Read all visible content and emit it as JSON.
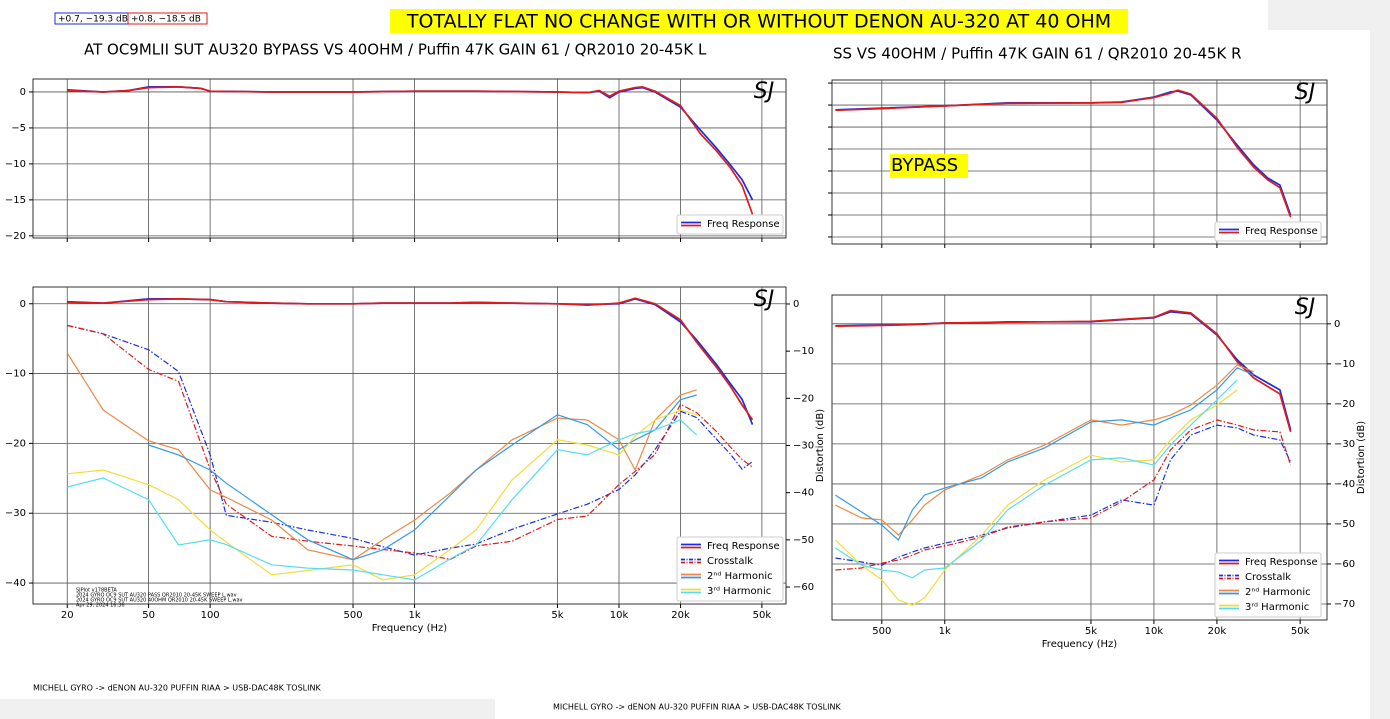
{
  "banner": "TOTALLY FLAT NO CHANGE WITH OR WITHOUT DENON AU-320 AT 40 OHM",
  "readouts": [
    {
      "text": "+0.7, −19.3 dB",
      "color": "#1a2ee0"
    },
    {
      "text": "+0.8, −18.5 dB",
      "color": "#e01a1a"
    }
  ],
  "footers": [
    "MICHELL GYRO -> dENON AU-320 PUFFIN RIAA  > USB-DAC48K  TOSLINK",
    "MICHELL GYRO -> dENON AU-320 PUFFIN RIAA  > USB-DAC48K  TOSLINK"
  ],
  "chart_data": [
    {
      "type": "line",
      "title": "AT OC9MLII SUT AU320 BYPASS VS 40OHM  / Puffin 47K GAIN 61 / QR2010 20-45K L",
      "watermark": "SJ",
      "xscale": "log",
      "xlim": [
        13.6,
        65600
      ],
      "xticks": [
        20,
        50,
        100,
        500,
        1000,
        5000,
        10000,
        20000,
        50000
      ],
      "xtick_labels": false,
      "ylim": [
        -20.3,
        1.8
      ],
      "yticks": [
        0,
        {
          "value": -5,
          "label": "−5"
        },
        {
          "value": -10,
          "label": "−10"
        },
        {
          "value": -15,
          "label": "−15"
        },
        {
          "value": -20,
          "label": "−20"
        }
      ],
      "grid": true,
      "x": [
        20,
        30,
        40,
        50,
        70,
        90,
        100,
        200,
        500,
        1000,
        2000,
        5000,
        7000,
        8000,
        9000,
        10000,
        12000,
        13000,
        15000,
        20000,
        25000,
        30000,
        35000,
        40000,
        45000
      ],
      "series": [
        {
          "name": "Freq Response",
          "traces": [
            {
              "color": "#1a2ee0",
              "values": [
                0.3,
                0,
                0.2,
                0.7,
                0.7,
                0.5,
                0.1,
                0,
                0,
                0.1,
                0.1,
                0,
                -0.1,
                0.1,
                -0.8,
                0,
                0.5,
                0.6,
                0,
                -2.1,
                -5.3,
                -7.8,
                -10.1,
                -12.2,
                -15
              ]
            },
            {
              "color": "#e01a1a",
              "values": [
                0.2,
                0,
                0.2,
                0.6,
                0.7,
                0.5,
                0.1,
                0,
                0,
                0.1,
                0.1,
                0,
                -0.1,
                0.2,
                -0.6,
                0.1,
                0.6,
                0.7,
                0.1,
                -1.9,
                -5.8,
                -8.2,
                -10.5,
                -13,
                -17
              ]
            }
          ]
        }
      ],
      "legend": "lower right"
    },
    {
      "type": "line",
      "xlabel": "Frequency (Hz)",
      "y2label": "Distortion (dB)",
      "watermark": "SJ",
      "notes": [
        "SJPlot v178BETA",
        "2024 GYRO OC9 SUT AU320 PASS QR2010 20-45K SWEEP L.wav",
        "2024 GYRO OC9 SUT AU320 40OHM QR2010 20-45K SWEEP L.wav",
        "Apr 29, 2024 16:36"
      ],
      "xscale": "log",
      "xlim": [
        13.6,
        65600
      ],
      "xticks": [
        20,
        50,
        100,
        500,
        {
          "value": 1000,
          "label": "1k"
        },
        {
          "value": 5000,
          "label": "5k"
        },
        {
          "value": 10000,
          "label": "10k"
        },
        {
          "value": 20000,
          "label": "20k"
        },
        {
          "value": 50000,
          "label": "50k"
        }
      ],
      "ylim": [
        -43,
        2.4
      ],
      "yticks": [
        0,
        {
          "value": -10,
          "label": "−10"
        },
        {
          "value": -20,
          "label": "−20"
        },
        {
          "value": -30,
          "label": "−30"
        },
        {
          "value": -40,
          "label": "−40"
        }
      ],
      "y2lim": [
        -63.6,
        3.6
      ],
      "y2ticks": [
        0,
        {
          "value": -10,
          "label": "−10"
        },
        {
          "value": -20,
          "label": "−20"
        },
        {
          "value": -30,
          "label": "−30"
        },
        {
          "value": -40,
          "label": "−40"
        },
        {
          "value": -50,
          "label": "−50"
        },
        {
          "value": -60,
          "label": "−60"
        }
      ],
      "grid": true,
      "x": [
        20,
        30,
        50,
        70,
        100,
        120,
        200,
        300,
        500,
        700,
        1000,
        1500,
        2000,
        3000,
        5000,
        7000,
        10000,
        12000,
        15000,
        20000,
        24000,
        30000,
        35000,
        40000,
        45000
      ],
      "series": [
        {
          "name": "Freq Response",
          "traces": [
            {
              "color": "#1a2ee0",
              "values": [
                0.3,
                0.1,
                0.7,
                0.7,
                0.6,
                0.3,
                0.1,
                0,
                0,
                0.1,
                0.1,
                0.1,
                0.2,
                0.1,
                0,
                -0.1,
                0,
                0.7,
                -0.1,
                -2.6,
                -5.2,
                -8.7,
                -11.4,
                -13.7,
                -17.3
              ]
            },
            {
              "color": "#e01a1a",
              "values": [
                0.2,
                0.1,
                0.6,
                0.7,
                0.6,
                0.3,
                0.1,
                0,
                0,
                0.1,
                0.1,
                0.1,
                0.2,
                0.1,
                0,
                -0.2,
                0.1,
                0.8,
                0,
                -2.3,
                -5.5,
                -9.1,
                -11.8,
                -14.5,
                -16.6
              ]
            }
          ]
        },
        {
          "name": "Crosstalk",
          "linestyle": "dashdot",
          "traces": [
            {
              "color": "#1a2ee0",
              "values": [
                -3.1,
                -4.3,
                -6.6,
                -9.7,
                -21.6,
                -30.3,
                -31.3,
                -32.4,
                -33.6,
                -34.8,
                -36,
                -35,
                -34.4,
                -32.3,
                -30.1,
                -28.7,
                -26.6,
                -24.5,
                -20.9,
                -15.4,
                -16.3,
                -19.4,
                -21.5,
                -23.7,
                -22.6
              ]
            },
            {
              "color": "#e01a1a",
              "values": [
                -3.1,
                -4.3,
                -9.4,
                -11.1,
                -23.7,
                -28.7,
                -33.3,
                -34,
                -34.7,
                -35.2,
                -35.7,
                -36.6,
                -34.7,
                -34,
                -30.9,
                -30.4,
                -25.9,
                -24,
                -21.6,
                -14.4,
                -15.6,
                -18.3,
                -20.5,
                -22.3,
                -23.4
              ]
            }
          ]
        },
        {
          "name": "2ⁿᵈ Harmonic",
          "axis": "y2",
          "traces": [
            {
              "color": "#ee8844",
              "values": [
                -10.4,
                -22.5,
                -29,
                -30.9,
                -39.4,
                -41,
                -45.8,
                -52.1,
                -54.2,
                -50,
                -45.8,
                -40,
                -35.2,
                -28.8,
                -24.2,
                -24.6,
                -28.8,
                -35.2,
                -24.6,
                -19.3,
                -18.2,
                null,
                null,
                null,
                null
              ]
            },
            {
              "color": "#3399ee",
              "values": [
                null,
                null,
                -29.9,
                -32,
                -35.2,
                -38,
                -44.7,
                -50,
                -54.2,
                -52.1,
                -47.9,
                -40.5,
                -35.2,
                -29.9,
                -23.5,
                -25.6,
                -30.9,
                -28.8,
                -26.7,
                -20.3,
                -19.3,
                null,
                null,
                null,
                null
              ]
            }
          ]
        },
        {
          "name": "3ʳᵈ Harmonic",
          "axis": "y2",
          "traces": [
            {
              "color": "#f2dc3a",
              "values": [
                -36,
                -35.2,
                -38.3,
                -41.5,
                -47.9,
                -50.5,
                -57.4,
                -56.5,
                -55.3,
                -58.5,
                -57.4,
                -52,
                -47.9,
                -37.3,
                -28.8,
                -29.9,
                -32,
                -28,
                -24.6,
                -22.5,
                -23.5,
                null,
                null,
                null,
                null
              ]
            },
            {
              "color": "#55ddf0",
              "values": [
                -38.8,
                -36.9,
                -41.5,
                -51.1,
                -50,
                -51,
                -55.3,
                -56,
                -56.4,
                -57.4,
                -58.5,
                -54,
                -51.1,
                -41.5,
                -30.9,
                -32,
                -28.8,
                -27.5,
                -26.7,
                -24.6,
                -27.8,
                null,
                null,
                null,
                null
              ]
            }
          ]
        }
      ],
      "legend": "lower right"
    },
    {
      "type": "line",
      "title": "SS VS 40OHM  / Puffin 47K GAIN 61 / QR2010 20-45K R",
      "watermark": "SJ",
      "annotation": "BYPASS",
      "xscale": "log",
      "xlim": [
        289,
        67200
      ],
      "xticks": [
        500,
        1000,
        5000,
        10000,
        20000,
        50000
      ],
      "xtick_labels": false,
      "ylim": [
        -31.6,
        5.7
      ],
      "yticks": [
        5,
        0,
        -5,
        -10,
        -15,
        -20,
        -25,
        -30
      ],
      "ytick_labels": false,
      "grid": true,
      "x": [
        300,
        500,
        1000,
        2000,
        5000,
        7000,
        10000,
        12000,
        13000,
        15000,
        20000,
        25000,
        30000,
        35000,
        40000,
        45000
      ],
      "series": [
        {
          "name": "Freq Response",
          "traces": [
            {
              "color": "#1a2ee0",
              "values": [
                -1.1,
                -0.7,
                -0.2,
                0.5,
                0.5,
                0.7,
                1.8,
                3,
                3.2,
                2.3,
                -3.4,
                -9.1,
                -13.6,
                -16.6,
                -18.2,
                -25
              ]
            },
            {
              "color": "#e01a1a",
              "values": [
                -1.2,
                -0.8,
                -0.2,
                0.4,
                0.5,
                0.6,
                1.7,
                2.7,
                3.4,
                2.5,
                -3,
                -9.6,
                -14.1,
                -17,
                -18.8,
                -25.5
              ]
            }
          ]
        }
      ],
      "legend": "lower right"
    },
    {
      "type": "line",
      "xlabel": "Frequency (Hz)",
      "y2label": "Distortion (dB)",
      "watermark": "SJ",
      "xscale": "log",
      "xlim": [
        289,
        67200
      ],
      "xticks": [
        500,
        {
          "value": 1000,
          "label": "1k"
        },
        {
          "value": 5000,
          "label": "5k"
        },
        {
          "value": 10000,
          "label": "10k"
        },
        {
          "value": 20000,
          "label": "20k"
        },
        {
          "value": 50000,
          "label": "50k"
        }
      ],
      "y2lim": [
        -74,
        7.2
      ],
      "y2ticks": [
        0,
        {
          "value": -10,
          "label": "−10"
        },
        {
          "value": -20,
          "label": "−20"
        },
        {
          "value": -30,
          "label": "−30"
        },
        {
          "value": -40,
          "label": "−40"
        },
        {
          "value": -50,
          "label": "−50"
        },
        {
          "value": -60,
          "label": "−60"
        },
        {
          "value": -70,
          "label": "−70"
        }
      ],
      "grid": true,
      "x": [
        300,
        400,
        500,
        600,
        700,
        800,
        1000,
        1500,
        2000,
        3000,
        5000,
        7000,
        10000,
        12000,
        15000,
        20000,
        25000,
        30000,
        40000,
        45000
      ],
      "series": [
        {
          "name": "Freq Response",
          "axis": "y2",
          "traces": [
            {
              "color": "#1a2ee0",
              "values": [
                -0.5,
                -0.4,
                -0.3,
                -0.2,
                -0.1,
                0,
                0.2,
                0.3,
                0.5,
                0.5,
                0.5,
                1,
                1.5,
                3,
                2.5,
                -2.8,
                -9,
                -12.8,
                -16.5,
                -26.5
              ]
            },
            {
              "color": "#e01a1a",
              "values": [
                -0.6,
                -0.5,
                -0.4,
                -0.3,
                -0.2,
                -0.1,
                0.2,
                0.3,
                0.4,
                0.5,
                0.6,
                1.1,
                1.6,
                3.3,
                2.7,
                -2.5,
                -9.5,
                -13.5,
                -17.5,
                -27
              ]
            }
          ]
        },
        {
          "name": "Crosstalk",
          "axis": "y2",
          "linestyle": "dashdot",
          "traces": [
            {
              "color": "#1a2ee0",
              "values": [
                -58.5,
                -59.5,
                -60.3,
                -58.3,
                -57,
                -56,
                -54.8,
                -52.8,
                -51,
                -49.5,
                -47.8,
                -44,
                -45.3,
                -34,
                -27.8,
                -25.3,
                -26,
                -27.8,
                -29,
                -34.5
              ]
            },
            {
              "color": "#e01a1a",
              "values": [
                -61.5,
                -61,
                -59.8,
                -59,
                -57.8,
                -56.5,
                -55.5,
                -53.3,
                -50.8,
                -49.5,
                -48.5,
                -44.5,
                -39,
                -31.5,
                -26.5,
                -24,
                -25.3,
                -26.5,
                -27,
                -35.3
              ]
            }
          ]
        },
        {
          "name": "2ⁿᵈ Harmonic",
          "axis": "y2",
          "traces": [
            {
              "color": "#ee8844",
              "values": [
                -45.3,
                -48.5,
                -49,
                -52.8,
                -49,
                -45.3,
                -41.5,
                -37.8,
                -34,
                -30.3,
                -24,
                -25.3,
                -24,
                -22.8,
                -20.3,
                -15.3,
                -10.3,
                -12,
                null,
                null
              ]
            },
            {
              "color": "#3399ee",
              "values": [
                -42.8,
                -47,
                -50.3,
                -54,
                -46.5,
                -42.8,
                -41,
                -38.5,
                -34.5,
                -31,
                -24.5,
                -24,
                -25.3,
                -23.5,
                -21.5,
                -16.5,
                -11,
                -12.8,
                null,
                null
              ]
            }
          ]
        },
        {
          "name": "3ʳᵈ Harmonic",
          "axis": "y2",
          "traces": [
            {
              "color": "#f2dc3a",
              "values": [
                -54,
                -60.3,
                -64,
                -69,
                -70.3,
                -68.5,
                -61.5,
                -52.8,
                -45.3,
                -39,
                -32.8,
                -34.5,
                -34,
                -29,
                -24,
                -20.3,
                -16.5,
                null,
                null,
                null
              ]
            },
            {
              "color": "#55ddf0",
              "values": [
                -56,
                -60.3,
                -61.5,
                -62,
                -63.5,
                -61.5,
                -61,
                -54,
                -46.5,
                -40.3,
                -34,
                -33.5,
                -35.3,
                -30.3,
                -25.3,
                -19,
                -14,
                null,
                null,
                null
              ]
            }
          ]
        }
      ],
      "legend": "lower right"
    }
  ]
}
